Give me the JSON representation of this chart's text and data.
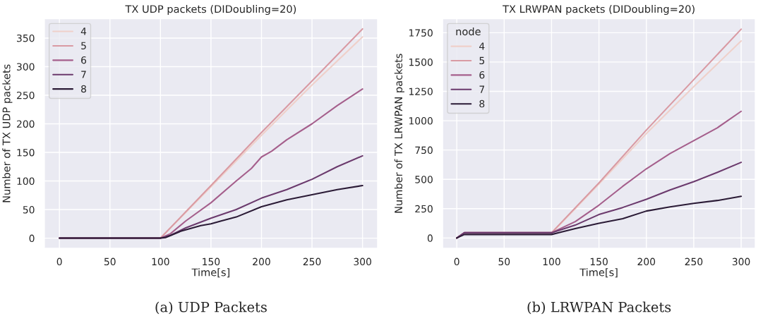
{
  "chart_data": [
    {
      "type": "line",
      "title": "TX UDP packets (DIDoubling=20)",
      "xlabel": "Time[s]",
      "ylabel": "Number of TX UDP packets",
      "xlim": [
        -15,
        315
      ],
      "ylim": [
        -18,
        384
      ],
      "xticks": [
        0,
        50,
        100,
        150,
        200,
        250,
        300
      ],
      "yticks": [
        0,
        50,
        100,
        150,
        200,
        250,
        300,
        350
      ],
      "grid": true,
      "legend": "top left",
      "marker": "none",
      "line_style": "solid",
      "annotations": [
        "(a) UDP Packets"
      ],
      "series": [
        {
          "name": "4",
          "color": "#efd0ca",
          "x": [
            0,
            100,
            150,
            200,
            250,
            300
          ],
          "values": [
            0,
            0,
            90,
            180,
            268,
            352
          ]
        },
        {
          "name": "5",
          "color": "#d99aa3",
          "x": [
            0,
            100,
            150,
            200,
            250,
            300
          ],
          "values": [
            0,
            0,
            92,
            185,
            275,
            366
          ]
        },
        {
          "name": "6",
          "color": "#a55f8c",
          "x": [
            0,
            100,
            110,
            125,
            150,
            175,
            190,
            200,
            210,
            225,
            250,
            275,
            300
          ],
          "values": [
            0,
            0,
            8,
            30,
            62,
            100,
            122,
            142,
            152,
            172,
            200,
            232,
            261
          ]
        },
        {
          "name": "7",
          "color": "#6b3a6d",
          "x": [
            0,
            100,
            110,
            125,
            150,
            175,
            200,
            225,
            250,
            275,
            300
          ],
          "values": [
            0,
            0,
            5,
            18,
            35,
            50,
            70,
            85,
            103,
            125,
            144
          ]
        },
        {
          "name": "8",
          "color": "#2b1b36",
          "x": [
            0,
            100,
            105,
            120,
            140,
            150,
            160,
            175,
            200,
            225,
            250,
            275,
            300
          ],
          "values": [
            0,
            0,
            1,
            12,
            22,
            25,
            30,
            37,
            55,
            67,
            76,
            85,
            92
          ]
        }
      ]
    },
    {
      "type": "line",
      "title": "TX LRWPAN packets (DIDoubling=20)",
      "xlabel": "Time[s]",
      "ylabel": "Number of TX LRWPAN packets",
      "legend_title": "node",
      "xlim": [
        -15,
        315
      ],
      "ylim": [
        -89,
        1870
      ],
      "xticks": [
        0,
        50,
        100,
        150,
        200,
        250,
        300
      ],
      "yticks": [
        0,
        250,
        500,
        750,
        1000,
        1250,
        1500,
        1750
      ],
      "grid": true,
      "legend": "top left",
      "marker": "none",
      "line_style": "solid",
      "annotations": [
        "(b) LRWPAN Packets"
      ],
      "series": [
        {
          "name": "4",
          "color": "#efd0ca",
          "x": [
            0,
            8,
            100,
            150,
            200,
            250,
            300
          ],
          "values": [
            0,
            40,
            40,
            460,
            890,
            1290,
            1680
          ]
        },
        {
          "name": "5",
          "color": "#d99aa3",
          "x": [
            0,
            8,
            100,
            150,
            200,
            250,
            300
          ],
          "values": [
            0,
            45,
            45,
            470,
            920,
            1350,
            1780
          ]
        },
        {
          "name": "6",
          "color": "#a55f8c",
          "x": [
            0,
            8,
            100,
            125,
            150,
            175,
            200,
            225,
            250,
            275,
            300
          ],
          "values": [
            0,
            45,
            45,
            140,
            280,
            440,
            590,
            720,
            830,
            940,
            1080
          ]
        },
        {
          "name": "7",
          "color": "#6b3a6d",
          "x": [
            0,
            8,
            100,
            125,
            150,
            175,
            200,
            225,
            250,
            275,
            300
          ],
          "values": [
            0,
            45,
            45,
            110,
            200,
            260,
            330,
            410,
            480,
            560,
            645
          ]
        },
        {
          "name": "8",
          "color": "#2b1b36",
          "x": [
            0,
            8,
            100,
            110,
            125,
            150,
            175,
            200,
            225,
            250,
            275,
            300
          ],
          "values": [
            0,
            30,
            30,
            50,
            80,
            125,
            165,
            230,
            265,
            295,
            320,
            355
          ]
        }
      ]
    }
  ]
}
